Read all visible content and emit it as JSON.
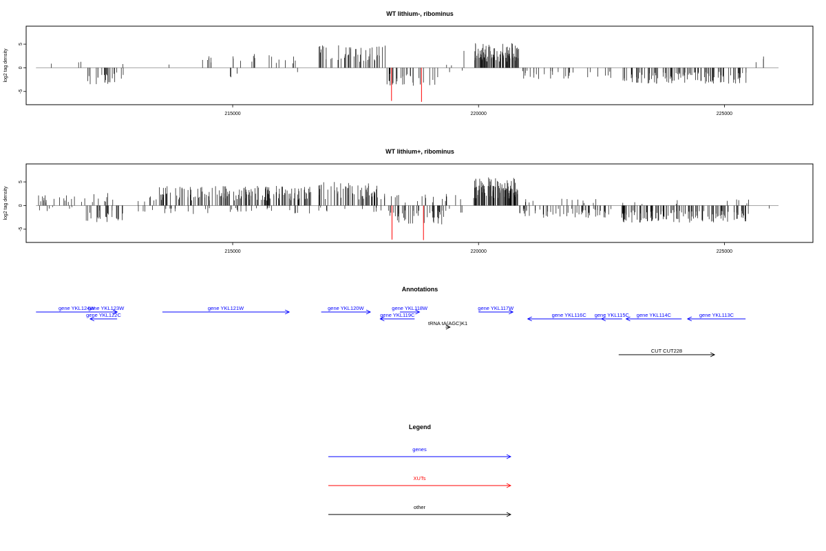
{
  "chart_data": [
    {
      "type": "bar",
      "title": "WT lithium-, ribominus",
      "xlabel": "",
      "ylabel": "log2 tag density",
      "xlim": [
        210800,
        226800
      ],
      "ylim": [
        -7.8,
        8.8
      ],
      "xticks": [
        215000,
        220000,
        225000
      ],
      "xtick_labels": [
        "215000",
        "220000",
        "225000"
      ],
      "yticks": [
        -5,
        0,
        5
      ],
      "ytick_labels": [
        "-5",
        "0",
        "5"
      ],
      "baseline": {
        "from": 211000,
        "to": 226100
      },
      "segments": [
        {
          "from": 211300,
          "to": 211350,
          "sign": 1,
          "amp": 2.4,
          "density": 1
        },
        {
          "from": 211850,
          "to": 211970,
          "sign": 1,
          "amp": 1.5,
          "density": 2
        },
        {
          "from": 212000,
          "to": 212800,
          "sign": -1,
          "amp": 3.8,
          "density": 22
        },
        {
          "from": 212760,
          "to": 212800,
          "sign": 1,
          "amp": 1.4,
          "density": 1
        },
        {
          "from": 213700,
          "to": 213720,
          "sign": 1,
          "amp": 1.6,
          "density": 1
        },
        {
          "from": 214300,
          "to": 214750,
          "sign": 1,
          "amp": 2.5,
          "density": 6
        },
        {
          "from": 215000,
          "to": 215200,
          "sign": 1,
          "amp": 2.6,
          "density": 3
        },
        {
          "from": 215350,
          "to": 215550,
          "sign": 1,
          "amp": 3.3,
          "density": 4
        },
        {
          "from": 215650,
          "to": 215900,
          "sign": 1,
          "amp": 3.5,
          "density": 3
        },
        {
          "from": 215900,
          "to": 216300,
          "sign": 1,
          "amp": 2.8,
          "density": 5
        },
        {
          "from": 214900,
          "to": 215800,
          "sign": -1,
          "amp": 2.6,
          "density": 3
        },
        {
          "from": 216300,
          "to": 216350,
          "sign": -1,
          "amp": 1.2,
          "density": 1
        },
        {
          "from": 216750,
          "to": 218100,
          "sign": 1,
          "amp": 4.8,
          "density": 50
        },
        {
          "from": 218100,
          "to": 219200,
          "sign": -1,
          "amp": 3.8,
          "density": 28
        },
        {
          "from": 219300,
          "to": 219450,
          "sign": 1,
          "amp": 1.3,
          "density": 2
        },
        {
          "from": 219400,
          "to": 219700,
          "sign": -1,
          "amp": 1.0,
          "density": 2
        },
        {
          "from": 219700,
          "to": 219720,
          "sign": 1,
          "amp": 4.7,
          "density": 1
        },
        {
          "from": 219920,
          "to": 220820,
          "sign": 1,
          "amp": 5.2,
          "density": 90
        },
        {
          "from": 220850,
          "to": 222700,
          "sign": -1,
          "amp": 2.4,
          "density": 30
        },
        {
          "from": 222900,
          "to": 225500,
          "sign": -1,
          "amp": 3.4,
          "density": 110
        },
        {
          "from": 225600,
          "to": 225650,
          "sign": 1,
          "amp": 1.2,
          "density": 1
        },
        {
          "from": 225760,
          "to": 225800,
          "sign": 1,
          "amp": 2.8,
          "density": 2
        }
      ],
      "xut_bars": [
        {
          "x": 218230,
          "y": -7.0
        },
        {
          "x": 218840,
          "y": -7.2
        }
      ]
    },
    {
      "type": "bar",
      "title": "WT lithium+, ribominus",
      "xlabel": "",
      "ylabel": "log2 tag density",
      "xlim": [
        210800,
        226800
      ],
      "ylim": [
        -7.8,
        8.8
      ],
      "xticks": [
        215000,
        220000,
        225000
      ],
      "xtick_labels": [
        "215000",
        "220000",
        "225000"
      ],
      "yticks": [
        -5,
        0,
        5
      ],
      "ytick_labels": [
        "-5",
        "0",
        "5"
      ],
      "baseline": {
        "from": 211000,
        "to": 226100
      },
      "segments": [
        {
          "from": 211050,
          "to": 212000,
          "sign": 1,
          "amp": 2.2,
          "density": 18
        },
        {
          "from": 211050,
          "to": 211800,
          "sign": -1,
          "amp": 1.2,
          "density": 6
        },
        {
          "from": 212000,
          "to": 212600,
          "sign": 1,
          "amp": 2.8,
          "density": 8
        },
        {
          "from": 211900,
          "to": 212800,
          "sign": -1,
          "amp": 3.5,
          "density": 25
        },
        {
          "from": 213000,
          "to": 213550,
          "sign": 1,
          "amp": 2.5,
          "density": 6
        },
        {
          "from": 213000,
          "to": 213550,
          "sign": -1,
          "amp": 1.3,
          "density": 4
        },
        {
          "from": 213500,
          "to": 216600,
          "sign": 1,
          "amp": 4.2,
          "density": 150
        },
        {
          "from": 213600,
          "to": 216600,
          "sign": -1,
          "amp": 1.8,
          "density": 30
        },
        {
          "from": 216750,
          "to": 218100,
          "sign": 1,
          "amp": 5.0,
          "density": 60
        },
        {
          "from": 216750,
          "to": 218100,
          "sign": -1,
          "amp": 1.5,
          "density": 10
        },
        {
          "from": 218100,
          "to": 219300,
          "sign": -1,
          "amp": 4.0,
          "density": 40
        },
        {
          "from": 218100,
          "to": 219300,
          "sign": 1,
          "amp": 2.3,
          "density": 12
        },
        {
          "from": 219300,
          "to": 219700,
          "sign": 1,
          "amp": 2.6,
          "density": 5
        },
        {
          "from": 219300,
          "to": 219700,
          "sign": -1,
          "amp": 1.5,
          "density": 4
        },
        {
          "from": 219900,
          "to": 220800,
          "sign": 1,
          "amp": 6.0,
          "density": 100
        },
        {
          "from": 220800,
          "to": 222700,
          "sign": -1,
          "amp": 2.6,
          "density": 55
        },
        {
          "from": 220800,
          "to": 222700,
          "sign": 1,
          "amp": 1.6,
          "density": 12
        },
        {
          "from": 222900,
          "to": 225500,
          "sign": -1,
          "amp": 3.6,
          "density": 130
        },
        {
          "from": 222900,
          "to": 225500,
          "sign": 1,
          "amp": 1.3,
          "density": 10
        },
        {
          "from": 225900,
          "to": 225920,
          "sign": -1,
          "amp": 1.6,
          "density": 1
        }
      ],
      "xut_bars": [
        {
          "x": 218240,
          "y": -7.2
        },
        {
          "x": 218880,
          "y": -7.3
        }
      ]
    },
    {
      "type": "table",
      "title": "Annotations",
      "xlim": [
        210800,
        226800
      ],
      "features": [
        {
          "label": "gene YKL124W",
          "from": 211000,
          "to": 212650,
          "strand": "+",
          "kind": "gene",
          "row": 0
        },
        {
          "label": "gene YKL123W",
          "from": 212200,
          "to": 212650,
          "strand": "+",
          "kind": "gene",
          "row": 0
        },
        {
          "label": "gene YKL122C",
          "from": 212100,
          "to": 212650,
          "strand": "-",
          "kind": "gene",
          "row": 1
        },
        {
          "label": "gene YKL121W",
          "from": 213570,
          "to": 216150,
          "strand": "+",
          "kind": "gene",
          "row": 0
        },
        {
          "label": "gene YKL120W",
          "from": 216800,
          "to": 217800,
          "strand": "+",
          "kind": "gene",
          "row": 0
        },
        {
          "label": "gene YKL119C",
          "from": 218000,
          "to": 218700,
          "strand": "-",
          "kind": "gene",
          "row": 1
        },
        {
          "label": "gene YKL118W",
          "from": 218400,
          "to": 218800,
          "strand": "+",
          "kind": "gene",
          "row": 0
        },
        {
          "label": "tRNA tA(AGC)K1",
          "from": 219330,
          "to": 219420,
          "strand": "+",
          "kind": "other",
          "row": 2
        },
        {
          "label": "gene YKL117W",
          "from": 220000,
          "to": 220700,
          "strand": "+",
          "kind": "gene",
          "row": 0
        },
        {
          "label": "gene YKL116C",
          "from": 221000,
          "to": 222680,
          "strand": "-",
          "kind": "gene",
          "row": 1
        },
        {
          "label": "gene YKL115C",
          "from": 222500,
          "to": 222920,
          "strand": "-",
          "kind": "gene",
          "row": 1
        },
        {
          "label": "gene YKL114C",
          "from": 223000,
          "to": 224130,
          "strand": "-",
          "kind": "gene",
          "row": 1
        },
        {
          "label": "gene YKL113C",
          "from": 224250,
          "to": 225430,
          "strand": "+",
          "kind": "gene",
          "row": 1,
          "dir": "-"
        },
        {
          "label": "CUT CUT228",
          "from": 222850,
          "to": 224800,
          "strand": "+",
          "kind": "other",
          "row": 3
        }
      ]
    },
    {
      "type": "table",
      "title": "Legend",
      "entries": [
        {
          "label": "genes",
          "color": "#0000ff"
        },
        {
          "label": "XUTs",
          "color": "#ff0000"
        },
        {
          "label": "other",
          "color": "#000000"
        }
      ]
    }
  ],
  "colors": {
    "bars": "#000000",
    "xut": "#ff0000",
    "gene": "#0000ff",
    "other": "#000000",
    "baseline": "#999999"
  }
}
